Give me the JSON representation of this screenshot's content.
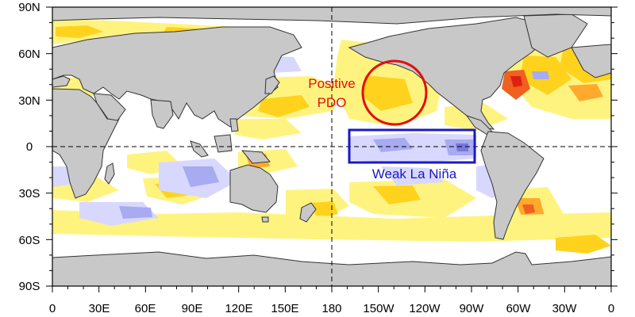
{
  "colors": {
    "ocean": "#ffffff",
    "land": "#c8c8c8",
    "coast": "#333333",
    "warm_light": "#fff380",
    "warm": "#ffd21e",
    "warm_mid": "#ffaa2c",
    "warm_strong": "#f06020",
    "warm_max": "#dd2010",
    "cool_light": "#d8d8ff",
    "cool": "#a8aaf2",
    "cool_strong": "#7777dd",
    "annotation_red": "#e01010",
    "annotation_blue": "#1818c8"
  },
  "axes": {
    "y_ticks": [
      "90N",
      "60N",
      "30N",
      "0",
      "30S",
      "60S",
      "90S"
    ],
    "x_ticks": [
      "0",
      "30E",
      "60E",
      "90E",
      "120E",
      "150E",
      "180",
      "150W",
      "120W",
      "90W",
      "60W",
      "30W",
      "0"
    ]
  },
  "annotations": {
    "pdo_line1": "Positive",
    "pdo_line2": "PDO",
    "la_nina": "Weak La Niña"
  }
}
